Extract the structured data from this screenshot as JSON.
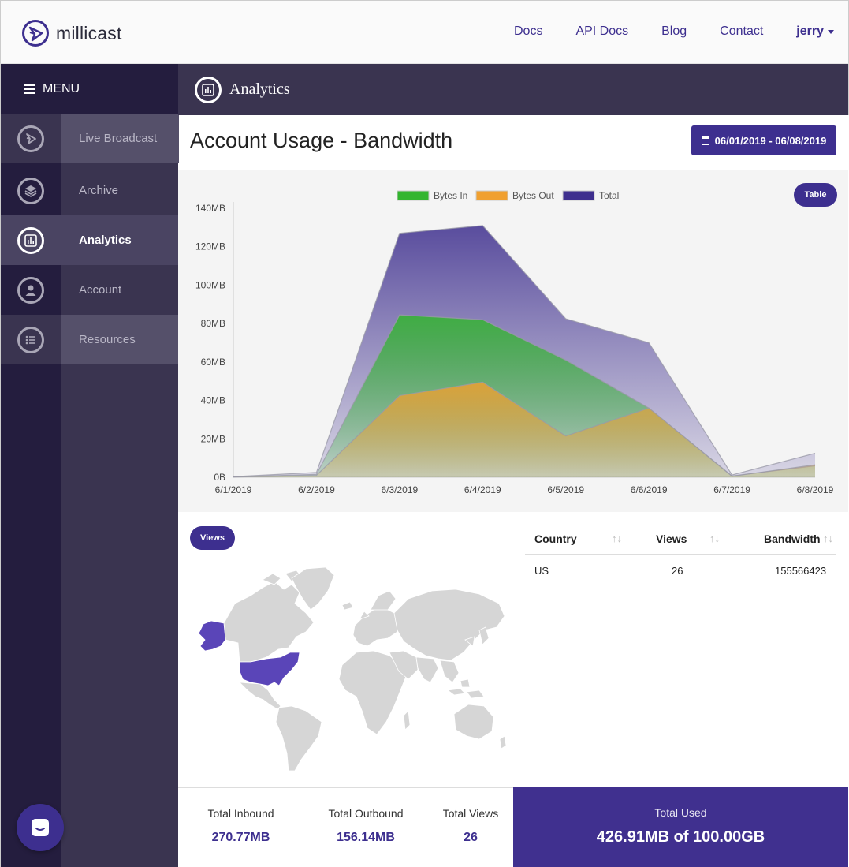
{
  "brand": {
    "name": "millicast"
  },
  "topnav": {
    "links": [
      "Docs",
      "API Docs",
      "Blog",
      "Contact"
    ],
    "user": "jerry"
  },
  "sidebar": {
    "menu_label": "MENU",
    "items": [
      {
        "label": "Live Broadcast",
        "icon": "broadcast-icon"
      },
      {
        "label": "Archive",
        "icon": "layers-icon"
      },
      {
        "label": "Analytics",
        "icon": "analytics-icon",
        "active": true
      },
      {
        "label": "Account",
        "icon": "user-icon"
      },
      {
        "label": "Resources",
        "icon": "list-icon"
      }
    ]
  },
  "header": {
    "title": "Analytics"
  },
  "main": {
    "title": "Account Usage - Bandwidth",
    "date_range": "06/01/2019 - 06/08/2019",
    "table_button": "Table",
    "views_button": "Views"
  },
  "chart_data": {
    "type": "area",
    "title": "",
    "xlabel": "",
    "ylabel": "",
    "categories": [
      "6/1/2019",
      "6/2/2019",
      "6/3/2019",
      "6/4/2019",
      "6/5/2019",
      "6/6/2019",
      "6/7/2019",
      "6/8/2019"
    ],
    "yticks": [
      "0B",
      "20MB",
      "40MB",
      "60MB",
      "80MB",
      "100MB",
      "120MB",
      "140MB"
    ],
    "ylim": [
      0,
      140
    ],
    "legend_position": "top-center",
    "series": [
      {
        "name": "Bytes In",
        "color": "#33b52f",
        "values": [
          0.2,
          1.5,
          84.5,
          82,
          61,
          36,
          0.7,
          6
        ]
      },
      {
        "name": "Bytes Out",
        "color": "#f0a030",
        "values": [
          0.1,
          1,
          42.5,
          49.5,
          21.5,
          36,
          0.5,
          6.5
        ]
      },
      {
        "name": "Total",
        "color": "#3e2f8e",
        "values": [
          0.3,
          2.5,
          127,
          131,
          82.5,
          70,
          1.2,
          12.5
        ]
      }
    ]
  },
  "map": {
    "highlighted": "US",
    "highlight_color": "#5a45b8",
    "land_color": "#d6d6d6"
  },
  "table": {
    "columns": [
      "Country",
      "Views",
      "Bandwidth"
    ],
    "rows": [
      {
        "country": "US",
        "views": "26",
        "bandwidth": "155566423"
      }
    ]
  },
  "stats": {
    "inbound_label": "Total Inbound",
    "inbound_value": "270.77MB",
    "outbound_label": "Total Outbound",
    "outbound_value": "156.14MB",
    "views_label": "Total Views",
    "views_value": "26",
    "used_label": "Total Used",
    "used_value": "426.91MB of 100.00GB"
  }
}
